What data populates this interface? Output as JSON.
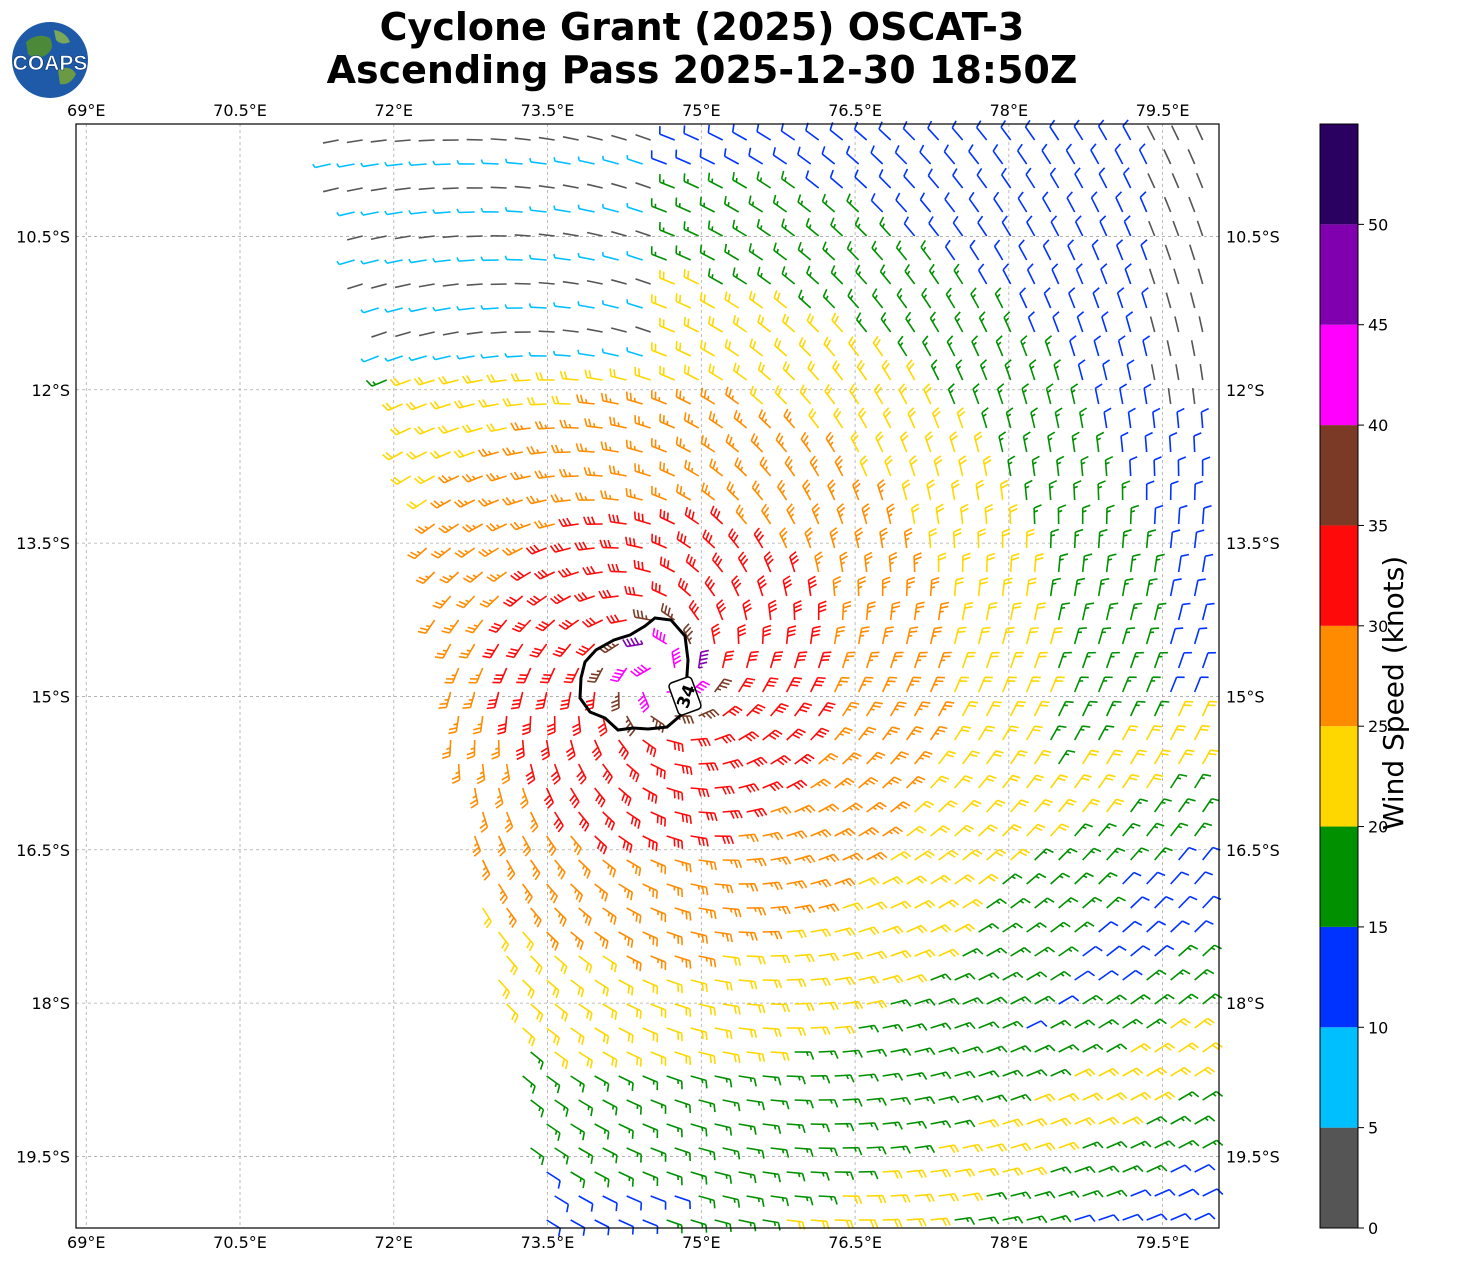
{
  "title_line1": "Cyclone Grant (2025) OSCAT-3",
  "title_line2": "Ascending Pass 2025-12-30 18:50Z",
  "logo_text": "COAPS",
  "map": {
    "lon_ticks": [
      "69°E",
      "70.5°E",
      "72°E",
      "73.5°E",
      "75°E",
      "76.5°E",
      "78°E",
      "79.5°E"
    ],
    "lat_ticks": [
      "10.5°S",
      "12°S",
      "13.5°S",
      "15°S",
      "16.5°S",
      "18°S",
      "19.5°S"
    ],
    "lon_range": [
      68.9,
      80.05
    ],
    "lat_range": [
      9.4,
      20.2
    ],
    "center_lon": 74.6,
    "center_lat": 14.8,
    "contour_label": "34"
  },
  "colorbar": {
    "label": "Wind Speed (knots)",
    "ticks": [
      "0",
      "5",
      "10",
      "15",
      "20",
      "25",
      "30",
      "35",
      "40",
      "45",
      "50"
    ],
    "bins": [
      {
        "from": 0,
        "to": 5,
        "color": "#555555"
      },
      {
        "from": 5,
        "to": 10,
        "color": "#00bfff"
      },
      {
        "from": 10,
        "to": 15,
        "color": "#0033ff"
      },
      {
        "from": 15,
        "to": 20,
        "color": "#009000"
      },
      {
        "from": 20,
        "to": 25,
        "color": "#ffd700"
      },
      {
        "from": 25,
        "to": 30,
        "color": "#ff8c00"
      },
      {
        "from": 30,
        "to": 35,
        "color": "#ff0a0a"
      },
      {
        "from": 35,
        "to": 40,
        "color": "#7a3a26"
      },
      {
        "from": 40,
        "to": 45,
        "color": "#ff00ff"
      },
      {
        "from": 45,
        "to": 50,
        "color": "#8000b0"
      },
      {
        "from": 50,
        "to": 55,
        "color": "#2a0060"
      }
    ]
  }
}
